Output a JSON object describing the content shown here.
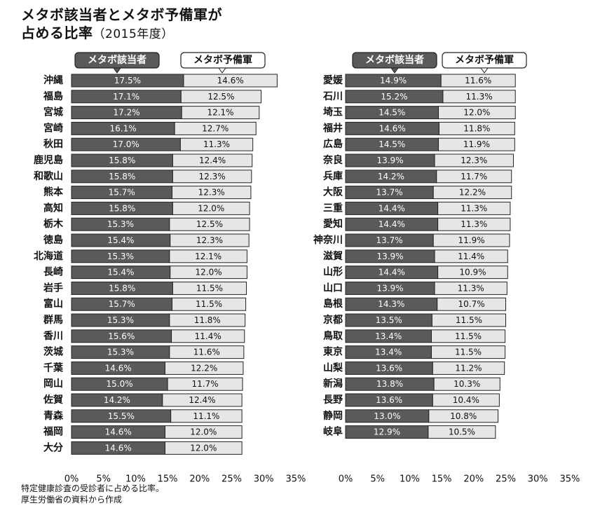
{
  "title_line1": "メタボ該当者とメタボ予備軍が",
  "title_line2_main": "占める比率",
  "title_line2_sub": "（2015年度）",
  "note_line1": "特定健康診査の受診者に占める比率。",
  "note_line2": "厚生労働省の資料から作成",
  "colors": {
    "metabo": "#5a5a5a",
    "reserve": "#e6e6e6",
    "border": "#222222"
  },
  "chart_data": [
    {
      "type": "bar",
      "stacked": true,
      "orientation": "horizontal",
      "categories": [
        "沖縄",
        "福島",
        "宮城",
        "宮崎",
        "秋田",
        "鹿児島",
        "和歌山",
        "熊本",
        "高知",
        "栃木",
        "徳島",
        "北海道",
        "長崎",
        "岩手",
        "富山",
        "群馬",
        "香川",
        "茨城",
        "千葉",
        "岡山",
        "佐賀",
        "青森",
        "福岡",
        "大分"
      ],
      "series": [
        {
          "name": "メタボ該当者",
          "values": [
            17.5,
            17.1,
            17.2,
            16.1,
            17.0,
            15.8,
            15.8,
            15.7,
            15.8,
            15.3,
            15.4,
            15.3,
            15.4,
            15.8,
            15.7,
            15.3,
            15.6,
            15.3,
            14.6,
            15.0,
            14.2,
            15.5,
            14.6,
            14.6
          ]
        },
        {
          "name": "メタボ予備軍",
          "values": [
            14.6,
            12.5,
            12.1,
            12.7,
            11.3,
            12.4,
            12.3,
            12.3,
            12.0,
            12.5,
            12.3,
            12.1,
            12.0,
            11.5,
            11.5,
            11.8,
            11.4,
            11.6,
            12.2,
            11.7,
            12.4,
            11.1,
            12.0,
            12.0
          ]
        }
      ],
      "x_ticks": [
        "0%",
        "5%",
        "10%",
        "15%",
        "20%",
        "25%",
        "30%",
        "35%"
      ],
      "xlim": [
        0,
        35
      ]
    },
    {
      "type": "bar",
      "stacked": true,
      "orientation": "horizontal",
      "categories": [
        "愛媛",
        "石川",
        "埼玉",
        "福井",
        "広島",
        "奈良",
        "兵庫",
        "大阪",
        "三重",
        "愛知",
        "神奈川",
        "滋賀",
        "山形",
        "山口",
        "島根",
        "京都",
        "鳥取",
        "東京",
        "山梨",
        "新潟",
        "長野",
        "静岡",
        "岐阜"
      ],
      "series": [
        {
          "name": "メタボ該当者",
          "values": [
            14.9,
            15.2,
            14.5,
            14.6,
            14.5,
            13.9,
            14.2,
            13.7,
            14.4,
            14.4,
            13.7,
            13.9,
            14.4,
            13.9,
            14.3,
            13.5,
            13.4,
            13.4,
            13.6,
            13.8,
            13.6,
            13.0,
            12.9
          ]
        },
        {
          "name": "メタボ予備軍",
          "values": [
            11.6,
            11.3,
            12.0,
            11.8,
            11.9,
            12.3,
            11.7,
            12.2,
            11.3,
            11.3,
            11.9,
            11.4,
            10.9,
            11.3,
            10.7,
            11.5,
            11.5,
            11.5,
            11.2,
            10.3,
            10.4,
            10.8,
            10.5
          ]
        }
      ],
      "x_ticks": [
        "0%",
        "5%",
        "10%",
        "15%",
        "20%",
        "25%",
        "30%",
        "35%"
      ],
      "xlim": [
        0,
        35
      ]
    }
  ]
}
